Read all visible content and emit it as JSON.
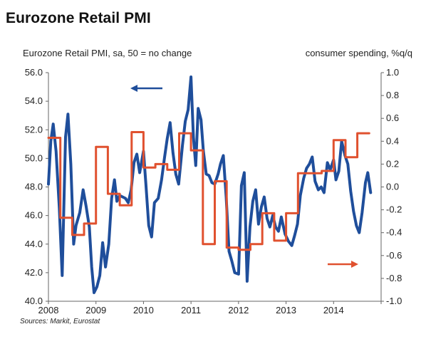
{
  "header": {
    "title": "Eurozone Retail PMI",
    "left_axis_label": "Eurozone Retail PMI, sa, 50 = no change",
    "right_axis_label": "consumer spending, %q/q",
    "source": "Sources: Markit, Eurostat"
  },
  "colors": {
    "pmi_line": "#1f4e9b",
    "spending_line": "#e0512f",
    "axis": "#666666"
  },
  "chart_data": {
    "type": "line",
    "title": "Eurozone Retail PMI",
    "left_axis_label": "Eurozone Retail PMI, sa, 50 = no change",
    "right_axis_label": "consumer spending, %q/q",
    "source": "Sources: Markit, Eurostat",
    "x_ticks": [
      "2008",
      "2009",
      "2010",
      "2011",
      "2012",
      "2013",
      "2014"
    ],
    "x_range": [
      2008.0,
      2015.0
    ],
    "y_left": {
      "range": [
        40.0,
        56.0
      ],
      "ticks": [
        "40.0",
        "42.0",
        "44.0",
        "46.0",
        "48.0",
        "50.0",
        "52.0",
        "54.0",
        "56.0"
      ]
    },
    "y_right": {
      "range": [
        -1.0,
        1.0
      ],
      "ticks": [
        "-1.0",
        "-0.8",
        "-0.6",
        "-0.4",
        "-0.2",
        "0.0",
        "0.2",
        "0.4",
        "0.6",
        "0.8",
        "1.0"
      ]
    },
    "series": [
      {
        "axis": "left",
        "color": "#1f4e9b",
        "arrow": "left",
        "points": [
          [
            2008.0,
            48.2
          ],
          [
            2008.05,
            51.2
          ],
          [
            2008.1,
            52.4
          ],
          [
            2008.16,
            50.5
          ],
          [
            2008.23,
            46.5
          ],
          [
            2008.29,
            41.8
          ],
          [
            2008.36,
            51.5
          ],
          [
            2008.41,
            53.1
          ],
          [
            2008.47,
            49.6
          ],
          [
            2008.53,
            44.0
          ],
          [
            2008.58,
            45.3
          ],
          [
            2008.66,
            46.2
          ],
          [
            2008.73,
            47.8
          ],
          [
            2008.79,
            46.7
          ],
          [
            2008.86,
            45.2
          ],
          [
            2008.91,
            42.4
          ],
          [
            2008.96,
            40.6
          ],
          [
            2009.02,
            41.0
          ],
          [
            2009.08,
            41.8
          ],
          [
            2009.14,
            44.1
          ],
          [
            2009.2,
            42.4
          ],
          [
            2009.27,
            44.0
          ],
          [
            2009.33,
            47.2
          ],
          [
            2009.39,
            48.5
          ],
          [
            2009.44,
            47.0
          ],
          [
            2009.5,
            47.4
          ],
          [
            2009.56,
            47.3
          ],
          [
            2009.62,
            47.2
          ],
          [
            2009.68,
            46.9
          ],
          [
            2009.74,
            47.8
          ],
          [
            2009.8,
            49.7
          ],
          [
            2009.86,
            50.3
          ],
          [
            2009.92,
            49.0
          ],
          [
            2010.0,
            50.5
          ],
          [
            2010.05,
            48.2
          ],
          [
            2010.11,
            45.3
          ],
          [
            2010.17,
            44.5
          ],
          [
            2010.23,
            46.9
          ],
          [
            2010.31,
            47.2
          ],
          [
            2010.38,
            48.5
          ],
          [
            2010.44,
            50.0
          ],
          [
            2010.5,
            51.4
          ],
          [
            2010.56,
            52.5
          ],
          [
            2010.62,
            50.4
          ],
          [
            2010.68,
            48.9
          ],
          [
            2010.74,
            48.2
          ],
          [
            2010.82,
            50.9
          ],
          [
            2010.88,
            52.6
          ],
          [
            2010.94,
            53.4
          ],
          [
            2011.0,
            55.7
          ],
          [
            2011.05,
            51.5
          ],
          [
            2011.1,
            49.5
          ],
          [
            2011.15,
            53.5
          ],
          [
            2011.21,
            52.7
          ],
          [
            2011.26,
            50.5
          ],
          [
            2011.32,
            48.9
          ],
          [
            2011.38,
            48.8
          ],
          [
            2011.44,
            48.3
          ],
          [
            2011.5,
            48.2
          ],
          [
            2011.57,
            48.9
          ],
          [
            2011.62,
            49.6
          ],
          [
            2011.68,
            50.2
          ],
          [
            2011.74,
            47.3
          ],
          [
            2011.8,
            43.5
          ],
          [
            2011.86,
            42.8
          ],
          [
            2011.92,
            42.0
          ],
          [
            2012.0,
            41.9
          ],
          [
            2012.06,
            48.1
          ],
          [
            2012.12,
            49.0
          ],
          [
            2012.18,
            41.4
          ],
          [
            2012.24,
            45.2
          ],
          [
            2012.3,
            47.0
          ],
          [
            2012.36,
            47.8
          ],
          [
            2012.42,
            45.4
          ],
          [
            2012.48,
            46.6
          ],
          [
            2012.54,
            47.3
          ],
          [
            2012.6,
            45.8
          ],
          [
            2012.66,
            45.2
          ],
          [
            2012.72,
            46.0
          ],
          [
            2012.78,
            45.2
          ],
          [
            2012.84,
            44.9
          ],
          [
            2012.9,
            45.9
          ],
          [
            2012.98,
            44.7
          ],
          [
            2013.05,
            44.2
          ],
          [
            2013.12,
            43.9
          ],
          [
            2013.18,
            44.6
          ],
          [
            2013.24,
            45.4
          ],
          [
            2013.3,
            47.4
          ],
          [
            2013.37,
            48.6
          ],
          [
            2013.43,
            49.3
          ],
          [
            2013.49,
            49.6
          ],
          [
            2013.55,
            50.1
          ],
          [
            2013.61,
            48.4
          ],
          [
            2013.68,
            47.8
          ],
          [
            2013.74,
            48.0
          ],
          [
            2013.8,
            47.6
          ],
          [
            2013.87,
            49.7
          ],
          [
            2013.93,
            49.2
          ],
          [
            2014.0,
            49.9
          ],
          [
            2014.05,
            48.5
          ],
          [
            2014.11,
            49.1
          ],
          [
            2014.17,
            51.2
          ],
          [
            2014.24,
            50.2
          ],
          [
            2014.3,
            49.6
          ],
          [
            2014.36,
            47.7
          ],
          [
            2014.42,
            46.3
          ],
          [
            2014.48,
            45.3
          ],
          [
            2014.54,
            44.8
          ],
          [
            2014.6,
            46.2
          ],
          [
            2014.67,
            48.3
          ],
          [
            2014.72,
            49.0
          ],
          [
            2014.78,
            47.6
          ]
        ]
      },
      {
        "axis": "right",
        "color": "#e0512f",
        "arrow": "right",
        "points": [
          [
            2008.0,
            0.43
          ],
          [
            2008.25,
            0.43
          ],
          [
            2008.25,
            -0.27
          ],
          [
            2008.5,
            -0.27
          ],
          [
            2008.5,
            -0.42
          ],
          [
            2008.75,
            -0.42
          ],
          [
            2008.75,
            -0.32
          ],
          [
            2009.0,
            -0.32
          ],
          [
            2009.0,
            0.35
          ],
          [
            2009.25,
            0.35
          ],
          [
            2009.25,
            -0.06
          ],
          [
            2009.5,
            -0.06
          ],
          [
            2009.5,
            -0.16
          ],
          [
            2009.75,
            -0.16
          ],
          [
            2009.75,
            0.48
          ],
          [
            2010.0,
            0.48
          ],
          [
            2010.0,
            0.17
          ],
          [
            2010.25,
            0.17
          ],
          [
            2010.25,
            0.2
          ],
          [
            2010.5,
            0.2
          ],
          [
            2010.5,
            0.15
          ],
          [
            2010.75,
            0.15
          ],
          [
            2010.75,
            0.47
          ],
          [
            2011.0,
            0.47
          ],
          [
            2011.0,
            0.32
          ],
          [
            2011.25,
            0.32
          ],
          [
            2011.25,
            -0.5
          ],
          [
            2011.5,
            -0.5
          ],
          [
            2011.5,
            0.05
          ],
          [
            2011.75,
            0.05
          ],
          [
            2011.75,
            -0.53
          ],
          [
            2012.0,
            -0.53
          ],
          [
            2012.0,
            -0.55
          ],
          [
            2012.25,
            -0.55
          ],
          [
            2012.25,
            -0.5
          ],
          [
            2012.5,
            -0.5
          ],
          [
            2012.5,
            -0.23
          ],
          [
            2012.75,
            -0.23
          ],
          [
            2012.75,
            -0.47
          ],
          [
            2013.0,
            -0.47
          ],
          [
            2013.0,
            -0.23
          ],
          [
            2013.25,
            -0.23
          ],
          [
            2013.25,
            0.12
          ],
          [
            2013.75,
            0.12
          ],
          [
            2013.75,
            0.14
          ],
          [
            2014.0,
            0.14
          ],
          [
            2014.0,
            0.41
          ],
          [
            2014.25,
            0.41
          ],
          [
            2014.25,
            0.26
          ],
          [
            2014.5,
            0.26
          ],
          [
            2014.5,
            0.47
          ],
          [
            2014.75,
            0.47
          ]
        ]
      }
    ]
  }
}
